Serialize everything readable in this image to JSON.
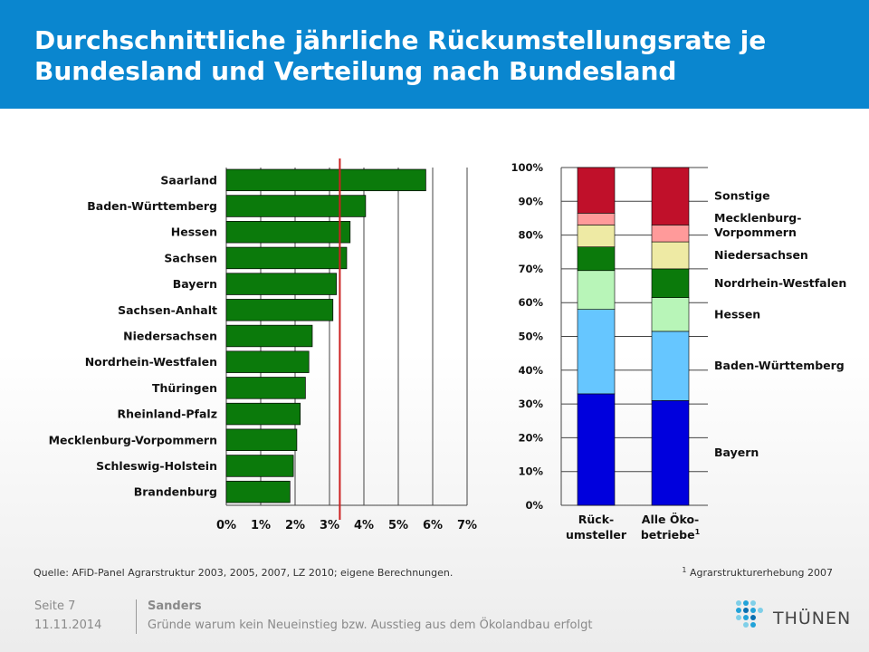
{
  "header": {
    "title_line1": "Durchschnittliche jährliche Rückumstellungsrate je",
    "title_line2": "Bundesland und Verteilung nach Bundesland"
  },
  "colors": {
    "header_blue": "#0a86cf",
    "bar_green": "#0b7a0b",
    "reference_line": "#cc2020"
  },
  "chart_data": [
    {
      "type": "bar",
      "orientation": "horizontal",
      "categories": [
        "Saarland",
        "Baden-Württemberg",
        "Hessen",
        "Sachsen",
        "Bayern",
        "Sachsen-Anhalt",
        "Niedersachsen",
        "Nordrhein-Westfalen",
        "Thüringen",
        "Rheinland-Pfalz",
        "Mecklenburg-Vorpommern",
        "Schleswig-Holstein",
        "Brandenburg"
      ],
      "values": [
        5.8,
        4.05,
        3.6,
        3.5,
        3.2,
        3.1,
        2.5,
        2.4,
        2.3,
        2.15,
        2.05,
        1.95,
        1.85
      ],
      "xlim": [
        0,
        7
      ],
      "xticks": [
        "0%",
        "1%",
        "2%",
        "3%",
        "4%",
        "5%",
        "6%",
        "7%"
      ],
      "reference_line": 3.3,
      "grid": true
    },
    {
      "type": "bar",
      "stacked": true,
      "categories": [
        "Rück-\numsteller",
        "Alle Öko-\nbetriebe"
      ],
      "category_footnote": [
        null,
        "1"
      ],
      "yticks": [
        "0%",
        "10%",
        "20%",
        "30%",
        "40%",
        "50%",
        "60%",
        "70%",
        "80%",
        "90%",
        "100%"
      ],
      "ylim": [
        0,
        100
      ],
      "series": [
        {
          "name": "Bayern",
          "color": "#0000dd",
          "values": [
            33,
            31
          ]
        },
        {
          "name": "Baden-Württemberg",
          "color": "#66c6ff",
          "values": [
            25,
            20.5
          ]
        },
        {
          "name": "Hessen",
          "color": "#b8f5b8",
          "values": [
            11.5,
            10
          ]
        },
        {
          "name": "Nordrhein-Westfalen",
          "color": "#0b7a0b",
          "values": [
            7,
            8.5
          ]
        },
        {
          "name": "Niedersachsen",
          "color": "#eeeaa4",
          "values": [
            6.5,
            8
          ]
        },
        {
          "name": "Mecklenburg-\nVorpommern",
          "color": "#ff9a9a",
          "values": [
            3.5,
            5
          ]
        },
        {
          "name": "Sonstige",
          "color": "#c0102a",
          "values": [
            13.5,
            17
          ]
        }
      ]
    }
  ],
  "source": "Quelle:  AFiD-Panel Agrarstruktur 2003, 2005, 2007, LZ 2010; eigene Berechnungen.",
  "footnote": {
    "mark": "1",
    "text": " Agrarstrukturerhebung 2007"
  },
  "footer": {
    "page": "Seite 7",
    "date": "11.11.2014",
    "author": "Sanders",
    "subtitle": "Gründe warum kein Neueinstieg bzw. Ausstieg aus dem Ökolandbau erfolgt",
    "logo_text": "THÜNEN"
  }
}
